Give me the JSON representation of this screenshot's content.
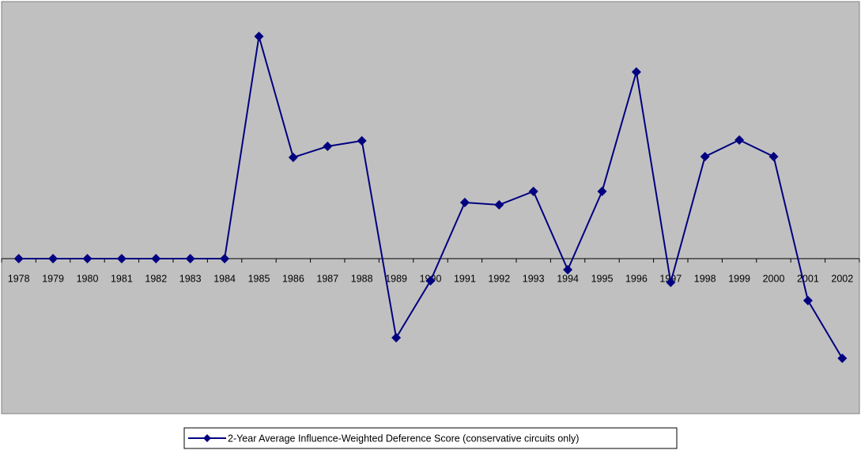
{
  "chart_data": {
    "type": "line",
    "categories": [
      "1978",
      "1979",
      "1980",
      "1981",
      "1982",
      "1983",
      "1984",
      "1985",
      "1986",
      "1987",
      "1988",
      "1989",
      "1990",
      "1991",
      "1992",
      "1993",
      "1994",
      "1995",
      "1996",
      "1997",
      "1998",
      "1999",
      "2000",
      "2001",
      "2002"
    ],
    "series": [
      {
        "name": "2-Year  Average Influence-Weighted Deference Score (conservative circuits only)",
        "color": "#000080",
        "values": [
          0,
          0,
          0,
          0,
          0,
          0,
          0,
          2.81,
          1.28,
          1.42,
          1.49,
          -1.0,
          -0.28,
          0.71,
          0.68,
          0.85,
          -0.14,
          0.85,
          2.36,
          -0.3,
          1.29,
          1.5,
          1.29,
          -0.53,
          -1.26
        ]
      }
    ],
    "ylim": [
      -1.96,
      3.25
    ],
    "legend": "bottom",
    "background": "#c0c0c0"
  }
}
